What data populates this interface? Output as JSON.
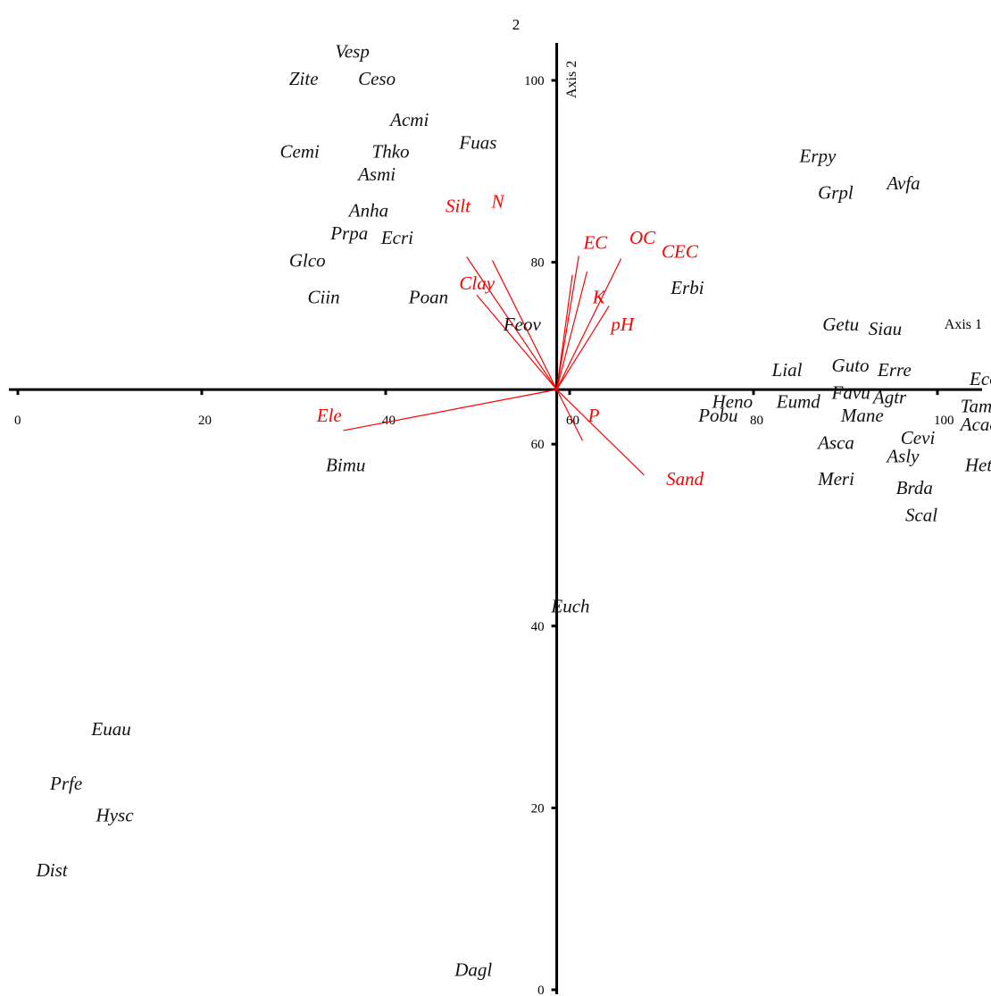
{
  "chart_data": {
    "type": "scatter",
    "title": "2",
    "xlabel": "Axis 1",
    "ylabel": "Axis 2",
    "xlim": [
      0,
      106
    ],
    "ylim": [
      0,
      105
    ],
    "origin": [
      58.6,
      66
    ],
    "x_ticks": [
      0,
      20,
      40,
      60,
      80,
      100
    ],
    "y_ticks": [
      0,
      20,
      40,
      60,
      80,
      100
    ],
    "x_tick_labels": [
      "0",
      "20",
      "40",
      "60",
      "80",
      "100"
    ],
    "y_tick_labels": [
      "0",
      "20",
      "40",
      "60",
      "80",
      "100"
    ],
    "env_color": "#ff0000",
    "species": [
      {
        "name": "Vesp",
        "x": 34.5,
        "y": 102.5
      },
      {
        "name": "Zite",
        "x": 29.5,
        "y": 99.5
      },
      {
        "name": "Ceso",
        "x": 37.0,
        "y": 99.5
      },
      {
        "name": "Acmi",
        "x": 40.5,
        "y": 95.0
      },
      {
        "name": "Fuas",
        "x": 48.0,
        "y": 92.5
      },
      {
        "name": "Cemi",
        "x": 28.5,
        "y": 91.5
      },
      {
        "name": "Thko",
        "x": 38.5,
        "y": 91.5
      },
      {
        "name": "Asmi",
        "x": 37.0,
        "y": 89.0
      },
      {
        "name": "Anha",
        "x": 36.0,
        "y": 85.0
      },
      {
        "name": "Prpa",
        "x": 34.0,
        "y": 82.5
      },
      {
        "name": "Ecri",
        "x": 39.5,
        "y": 82.0
      },
      {
        "name": "Glco",
        "x": 29.5,
        "y": 79.5
      },
      {
        "name": "Ciin",
        "x": 31.5,
        "y": 75.5
      },
      {
        "name": "Poan",
        "x": 42.5,
        "y": 75.5
      },
      {
        "name": "Feov",
        "x": 52.8,
        "y": 72.5
      },
      {
        "name": "Erpy",
        "x": 85.0,
        "y": 91.0
      },
      {
        "name": "Avfa",
        "x": 94.5,
        "y": 88.0
      },
      {
        "name": "Grpl",
        "x": 87.0,
        "y": 87.0
      },
      {
        "name": "Erbi",
        "x": 71.0,
        "y": 76.5
      },
      {
        "name": "Getu",
        "x": 87.5,
        "y": 72.5
      },
      {
        "name": "Siau",
        "x": 92.5,
        "y": 72.0
      },
      {
        "name": "Lial",
        "x": 82.0,
        "y": 67.5
      },
      {
        "name": "Guto",
        "x": 88.5,
        "y": 68.0
      },
      {
        "name": "Erre",
        "x": 93.5,
        "y": 67.5
      },
      {
        "name": "Ecor",
        "x": 103.5,
        "y": 66.5
      },
      {
        "name": "Heno",
        "x": 75.5,
        "y": 64.0
      },
      {
        "name": "Eumd",
        "x": 82.5,
        "y": 64.0
      },
      {
        "name": "Favu",
        "x": 88.5,
        "y": 65.0
      },
      {
        "name": "Agtr",
        "x": 93.0,
        "y": 64.5
      },
      {
        "name": "Tamo",
        "x": 102.5,
        "y": 63.5
      },
      {
        "name": "Pobu",
        "x": 74.0,
        "y": 62.5
      },
      {
        "name": "Mane",
        "x": 89.5,
        "y": 62.5
      },
      {
        "name": "Acac",
        "x": 102.5,
        "y": 61.5
      },
      {
        "name": "Cevi",
        "x": 96.0,
        "y": 60.0
      },
      {
        "name": "Asca",
        "x": 87.0,
        "y": 59.5
      },
      {
        "name": "Asly",
        "x": 94.5,
        "y": 58.0
      },
      {
        "name": "Hete",
        "x": 103.0,
        "y": 57.0
      },
      {
        "name": "Meri",
        "x": 87.0,
        "y": 55.5
      },
      {
        "name": "Brda",
        "x": 95.5,
        "y": 54.5
      },
      {
        "name": "Scal",
        "x": 96.5,
        "y": 51.5
      },
      {
        "name": "Bimu",
        "x": 33.5,
        "y": 57.0
      },
      {
        "name": "Euch",
        "x": 58.0,
        "y": 41.5
      },
      {
        "name": "Euau",
        "x": 8.0,
        "y": 28.0
      },
      {
        "name": "Prfe",
        "x": 3.5,
        "y": 22.0
      },
      {
        "name": "Hysc",
        "x": 8.5,
        "y": 18.5
      },
      {
        "name": "Dist",
        "x": 2.0,
        "y": 12.5
      },
      {
        "name": "Dagl",
        "x": 47.5,
        "y": 1.5
      }
    ],
    "env_vectors": [
      {
        "name": "Silt",
        "x_end": 48.8,
        "y_end": 80.6,
        "label_x": 46.5,
        "label_y": 85.5
      },
      {
        "name": "N",
        "x_end": 51.6,
        "y_end": 80.2,
        "label_x": 51.5,
        "label_y": 86.0
      },
      {
        "name": "Clay",
        "x_end": 49.9,
        "y_end": 76.4,
        "label_x": 48.0,
        "label_y": 77.0
      },
      {
        "name": "EC",
        "x_end": 61.0,
        "y_end": 80.7,
        "label_x": 61.5,
        "label_y": 81.5
      },
      {
        "name": "OC",
        "x_end": 65.6,
        "y_end": 80.4,
        "label_x": 66.5,
        "label_y": 82.0
      },
      {
        "name": "CEC",
        "x_end": 61.9,
        "y_end": 79.0,
        "label_x": 70.0,
        "label_y": 80.5
      },
      {
        "name": "K",
        "x_end": 60.3,
        "y_end": 78.6,
        "label_x": 62.5,
        "label_y": 75.5
      },
      {
        "name": "pH",
        "x_end": 64.3,
        "y_end": 75.2,
        "label_x": 64.5,
        "label_y": 72.5
      },
      {
        "name": "Ele",
        "x_end": 35.4,
        "y_end": 61.5,
        "label_x": 32.5,
        "label_y": 62.5
      },
      {
        "name": "P",
        "x_end": 61.4,
        "y_end": 60.4,
        "label_x": 62.0,
        "label_y": 62.5
      },
      {
        "name": "Sand",
        "x_end": 68.1,
        "y_end": 56.6,
        "label_x": 70.5,
        "label_y": 55.5
      }
    ]
  }
}
